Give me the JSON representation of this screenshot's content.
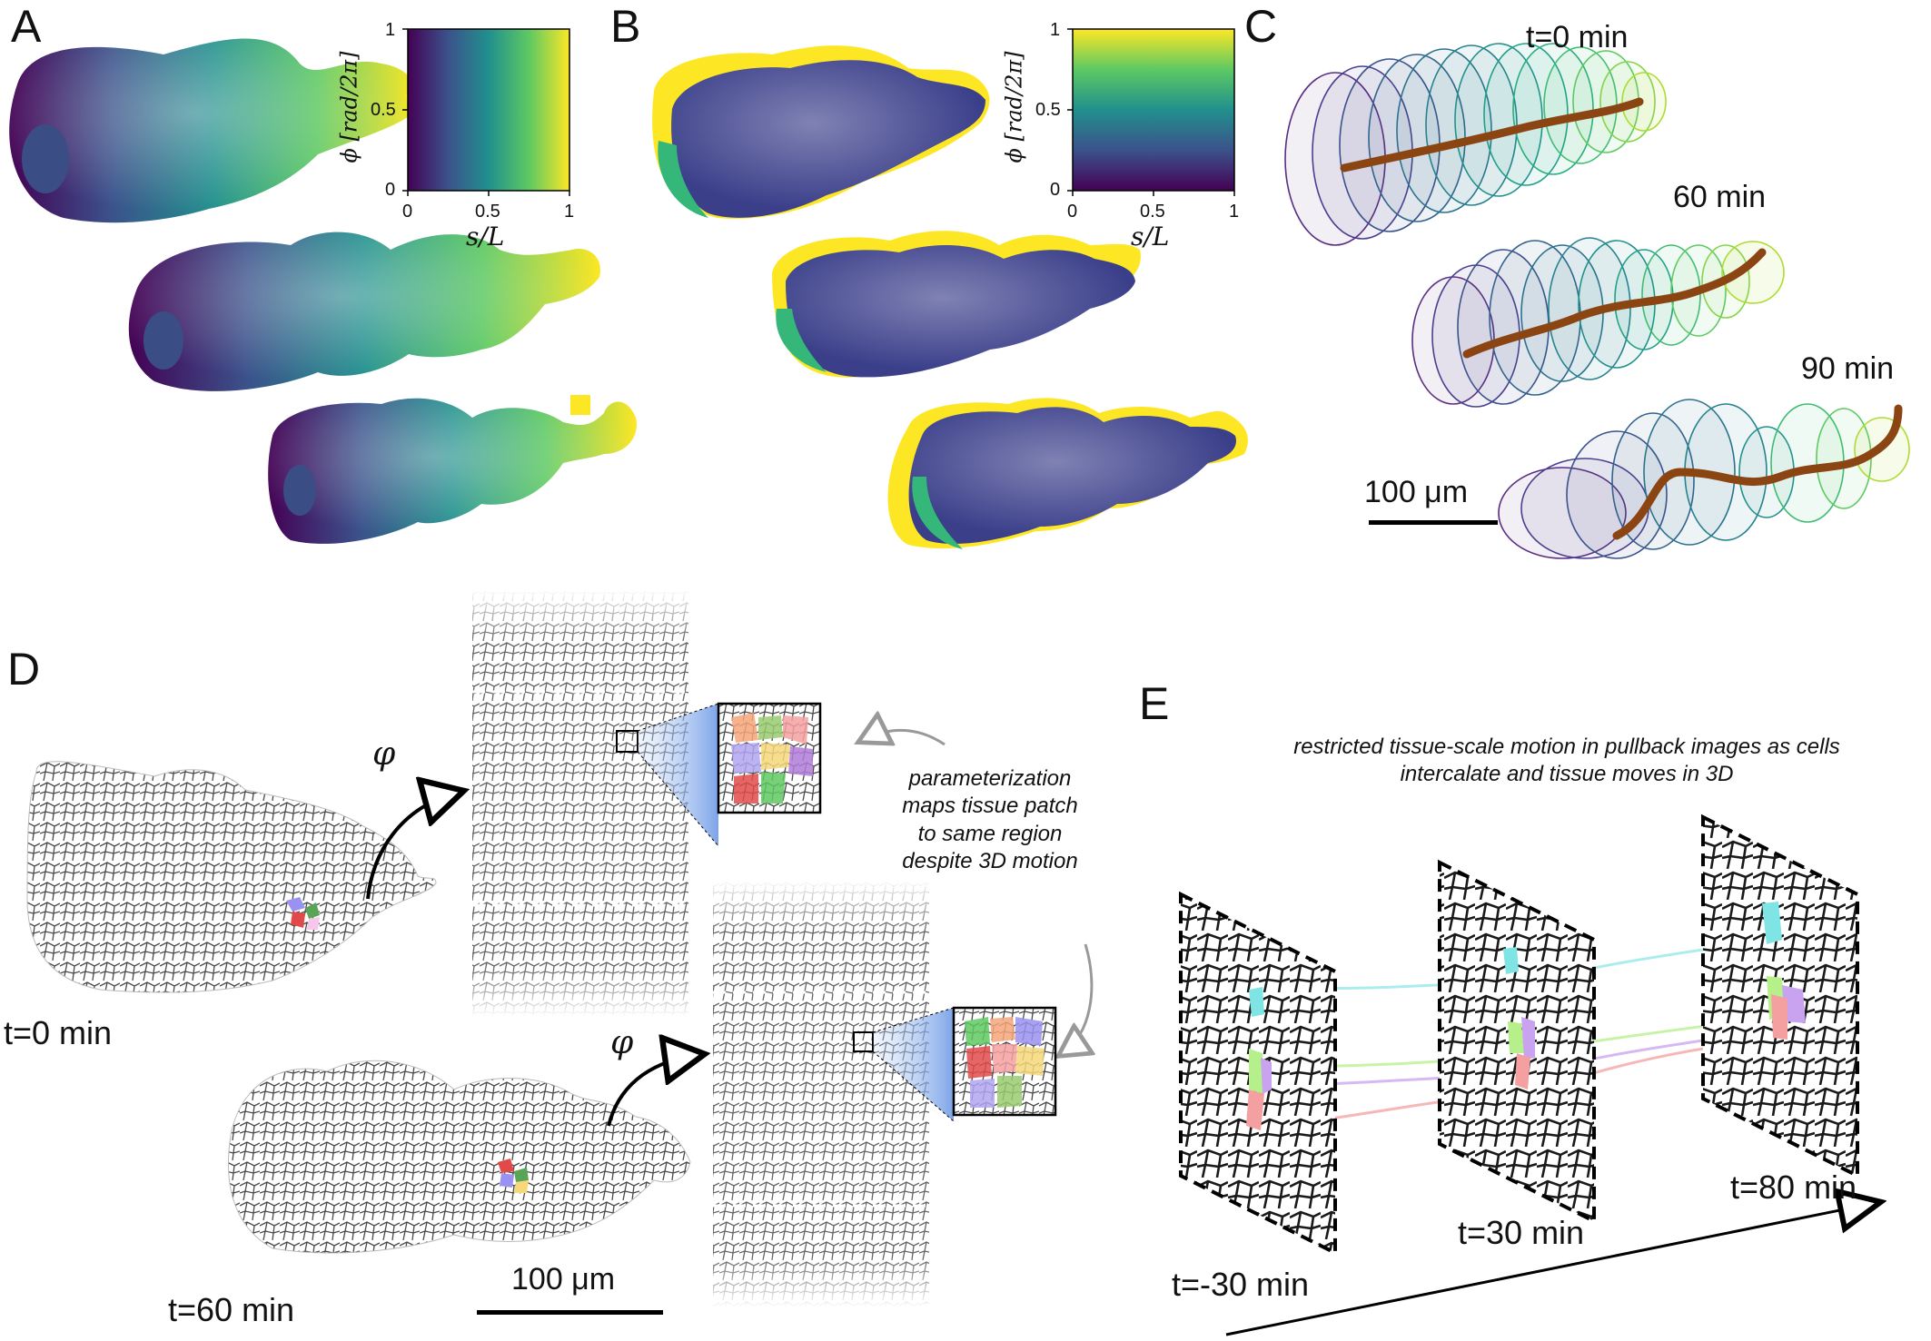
{
  "panels": {
    "A": {
      "letter": "A"
    },
    "B": {
      "letter": "B"
    },
    "C": {
      "letter": "C"
    },
    "D": {
      "letter": "D"
    },
    "E": {
      "letter": "E"
    }
  },
  "colorbars": {
    "A": {
      "ylabel": "ϕ [rad/2π]",
      "xlabel": "s/L",
      "yticks": [
        "1",
        "0.5",
        "0"
      ],
      "xticks": [
        "0",
        "0.5",
        "1"
      ],
      "gradient_direction": "horizontal",
      "colormap": [
        "#440154",
        "#3b528b",
        "#21908d",
        "#5dc963",
        "#fde725"
      ]
    },
    "B": {
      "ylabel": "ϕ [rad/2π]",
      "xlabel": "s/L",
      "yticks": [
        "1",
        "0.5",
        "0"
      ],
      "xticks": [
        "0",
        "0.5",
        "1"
      ],
      "gradient_direction": "vertical",
      "colormap": [
        "#440154",
        "#3b528b",
        "#21908d",
        "#5dc963",
        "#fde725"
      ]
    }
  },
  "panelC": {
    "time_labels": [
      "t=0 min",
      "60 min",
      "90 min"
    ],
    "scale_label": "100 μm",
    "centerline_color": "#8b4513"
  },
  "panelD": {
    "phi_symbol": "φ",
    "time_labels": [
      "t=0 min",
      "t=60 min"
    ],
    "annotation": [
      "parameterization",
      "maps tissue patch",
      "to same region",
      "despite 3D motion"
    ],
    "scale_label": "100 μm"
  },
  "panelE": {
    "caption": [
      "restricted tissue-scale motion in pullback images as cells",
      "intercalate and tissue moves in 3D"
    ],
    "time_labels": [
      "t=-30 min",
      "t=30 min",
      "t=80 min"
    ],
    "track_colors": [
      "#8fe8e8",
      "#b5f08a",
      "#c9a2f0",
      "#f4a0a0"
    ]
  }
}
